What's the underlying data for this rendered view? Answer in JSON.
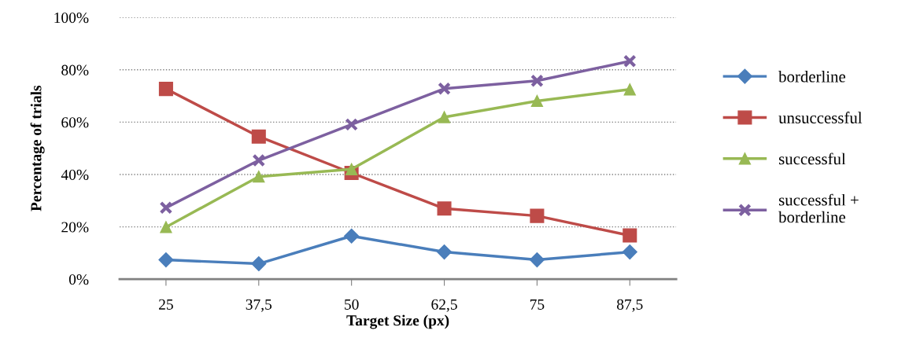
{
  "chart_data": {
    "type": "line",
    "xlabel": "Target Size (px)",
    "ylabel": "Percentage of trials",
    "categories": [
      "25",
      "37,5",
      "50",
      "62,5",
      "75",
      "87,5"
    ],
    "series": [
      {
        "name": "borderline",
        "color": "#4a7ebb",
        "marker": "diamond",
        "values": [
          7.4,
          5.9,
          16.5,
          10.4,
          7.4,
          10.4
        ]
      },
      {
        "name": "unsuccessful",
        "color": "#be4b48",
        "marker": "square",
        "values": [
          72.7,
          54.5,
          40.6,
          27.0,
          24.2,
          16.7
        ]
      },
      {
        "name": "successful",
        "color": "#98b954",
        "marker": "triangle",
        "values": [
          19.9,
          39.2,
          42.0,
          61.9,
          68.1,
          72.5
        ]
      },
      {
        "name": "successful + borderline",
        "color": "#7d60a0",
        "marker": "cross",
        "values": [
          27.3,
          45.4,
          59.1,
          72.8,
          75.8,
          83.3
        ]
      }
    ],
    "ylim": [
      0,
      100
    ],
    "yticks": [
      {
        "value": 0,
        "label": "0%"
      },
      {
        "value": 20,
        "label": "20%"
      },
      {
        "value": 40,
        "label": "40%"
      },
      {
        "value": 60,
        "label": "60%"
      },
      {
        "value": 80,
        "label": "80%"
      },
      {
        "value": 100,
        "label": "100%"
      }
    ],
    "grid": "y",
    "legend": "right",
    "line_style": "solid"
  }
}
